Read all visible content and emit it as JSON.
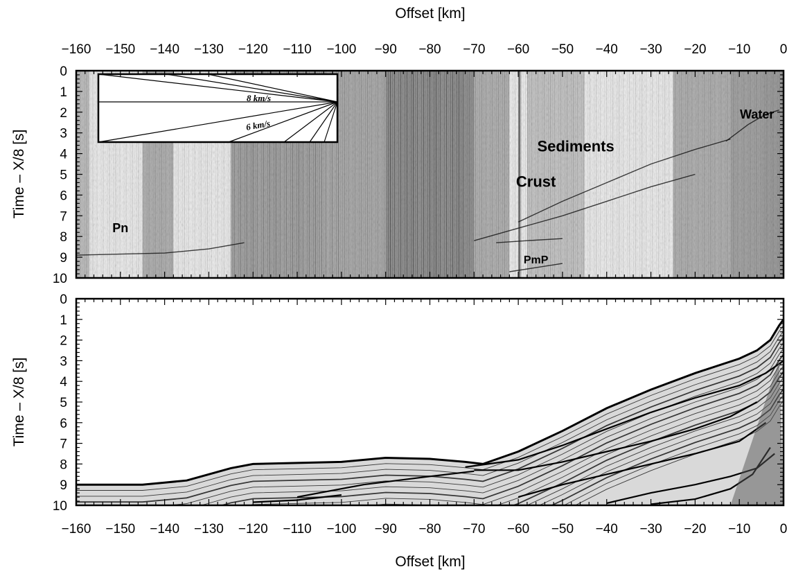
{
  "chart_data": [
    {
      "type": "seismic-record-section",
      "xlabel": "Offset [km]",
      "ylabel": "Time – X/8 [s]",
      "xlim": [
        -160,
        0
      ],
      "ylim": [
        10,
        0
      ],
      "xticks": [
        -160,
        -150,
        -140,
        -130,
        -120,
        -110,
        -100,
        -90,
        -80,
        -70,
        -60,
        -50,
        -40,
        -30,
        -20,
        -10,
        0
      ],
      "yticks": [
        0,
        1,
        2,
        3,
        4,
        5,
        6,
        7,
        8,
        9,
        10
      ],
      "annotations": [
        {
          "text": "Water",
          "x": -6,
          "y": 2.3
        },
        {
          "text": "Sediments",
          "x": -47,
          "y": 3.9
        },
        {
          "text": "Crust",
          "x": -56,
          "y": 5.6
        },
        {
          "text": "Pn",
          "x": -150,
          "y": 7.8
        },
        {
          "text": "PmP",
          "x": -56,
          "y": 9.3
        }
      ],
      "inset": {
        "labels": [
          "8 km/s",
          "6 km/s"
        ]
      },
      "phases": [
        {
          "x": [
            -13,
            -8,
            -4,
            -1
          ],
          "y": [
            3.4,
            2.6,
            2.1,
            1.9
          ]
        },
        {
          "x": [
            -60,
            -50,
            -40,
            -30,
            -20,
            -12
          ],
          "y": [
            7.3,
            6.3,
            5.4,
            4.5,
            3.8,
            3.3
          ]
        },
        {
          "x": [
            -70,
            -60,
            -50,
            -40,
            -30,
            -20
          ],
          "y": [
            8.2,
            7.6,
            7.0,
            6.3,
            5.6,
            5.0
          ]
        },
        {
          "x": [
            -160,
            -150,
            -140,
            -130,
            -122
          ],
          "y": [
            8.9,
            8.85,
            8.8,
            8.6,
            8.3
          ]
        },
        {
          "x": [
            -65,
            -58,
            -50
          ],
          "y": [
            8.3,
            8.2,
            8.1
          ]
        },
        {
          "x": [
            -62,
            -56,
            -50
          ],
          "y": [
            9.7,
            9.5,
            9.3
          ]
        }
      ]
    },
    {
      "type": "synthetic-seismogram",
      "xlabel": "Offset [km]",
      "ylabel": "Time – X/8 [s]",
      "xlim": [
        -160,
        0
      ],
      "ylim": [
        10,
        0
      ],
      "xticks": [
        -160,
        -150,
        -140,
        -130,
        -120,
        -110,
        -100,
        -90,
        -80,
        -70,
        -60,
        -50,
        -40,
        -30,
        -20,
        -10,
        0
      ],
      "yticks": [
        0,
        1,
        2,
        3,
        4,
        5,
        6,
        7,
        8,
        9,
        10
      ],
      "first_arrival": {
        "x": [
          -160,
          -150,
          -145,
          -140,
          -135,
          -130,
          -125,
          -120,
          -110,
          -100,
          -90,
          -80,
          -72,
          -68,
          -60,
          -50,
          -40,
          -30,
          -20,
          -10,
          -6,
          -3,
          -1,
          0
        ],
        "y": [
          9.0,
          9.0,
          9.0,
          8.9,
          8.8,
          8.5,
          8.2,
          8.0,
          7.95,
          7.9,
          7.7,
          7.75,
          7.9,
          8.0,
          7.4,
          6.4,
          5.3,
          4.4,
          3.6,
          2.9,
          2.5,
          2.0,
          1.3,
          1.0
        ]
      },
      "phases": [
        {
          "x": [
            -72,
            -60,
            -50,
            -40,
            -30,
            -20,
            -10,
            -4,
            0
          ],
          "y": [
            8.15,
            7.8,
            7.1,
            6.3,
            5.5,
            4.8,
            4.2,
            3.6,
            3.0
          ]
        },
        {
          "x": [
            -70,
            -60,
            -50,
            -40,
            -30,
            -20,
            -12,
            -6
          ],
          "y": [
            8.3,
            8.3,
            7.9,
            7.4,
            6.9,
            6.3,
            5.7,
            5.0
          ]
        },
        {
          "x": [
            -110,
            -95,
            -80,
            -70
          ],
          "y": [
            9.6,
            9.0,
            8.6,
            8.35
          ]
        },
        {
          "x": [
            -120,
            -110,
            -100
          ],
          "y": [
            9.85,
            9.75,
            9.5
          ]
        },
        {
          "x": [
            -60,
            -50,
            -40,
            -30,
            -20,
            -10,
            -4
          ],
          "y": [
            9.6,
            9.0,
            8.5,
            8.0,
            7.5,
            6.9,
            6.0
          ]
        },
        {
          "x": [
            -40,
            -30,
            -20,
            -12,
            -6,
            -2
          ],
          "y": [
            9.9,
            9.4,
            9.0,
            8.6,
            8.2,
            7.5
          ]
        },
        {
          "x": [
            -30,
            -20,
            -12,
            -7,
            -3
          ],
          "y": [
            9.95,
            9.7,
            9.2,
            8.5,
            7.2
          ]
        }
      ]
    }
  ]
}
